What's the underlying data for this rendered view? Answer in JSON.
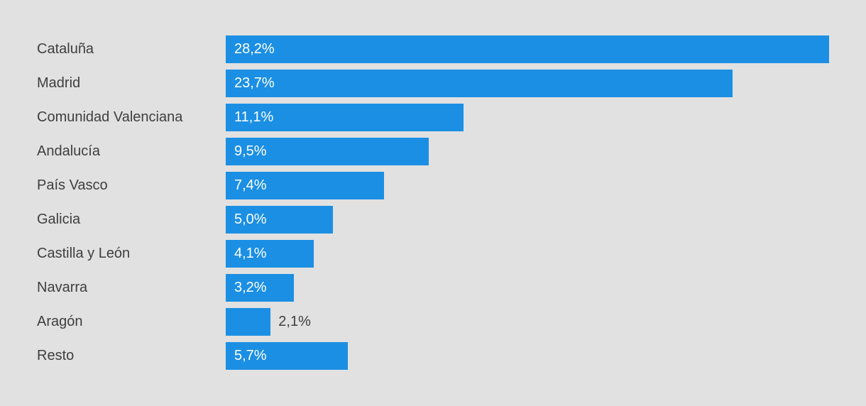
{
  "chart_data": {
    "type": "bar",
    "orientation": "horizontal",
    "title": "",
    "xlabel": "",
    "ylabel": "",
    "grid": false,
    "legend": false,
    "xlim": [
      0,
      28.2
    ],
    "categories": [
      "Cataluña",
      "Madrid",
      "Comunidad Valenciana",
      "Andalucía",
      "País Vasco",
      "Galicia",
      "Castilla y León",
      "Navarra",
      "Aragón",
      "Resto"
    ],
    "values": [
      28.2,
      23.7,
      11.1,
      9.5,
      7.4,
      5.0,
      4.1,
      3.2,
      2.1,
      5.7
    ],
    "value_labels": [
      "28,2%",
      "23,7%",
      "11,1%",
      "9,5%",
      "7,4%",
      "5,0%",
      "4,1%",
      "3,2%",
      "2,1%",
      "5,7%"
    ]
  },
  "colors": {
    "background": "#e1e1e1",
    "bar": "#1b8fe3",
    "text": "#3e3e3e",
    "value_inside": "#ffffff"
  }
}
